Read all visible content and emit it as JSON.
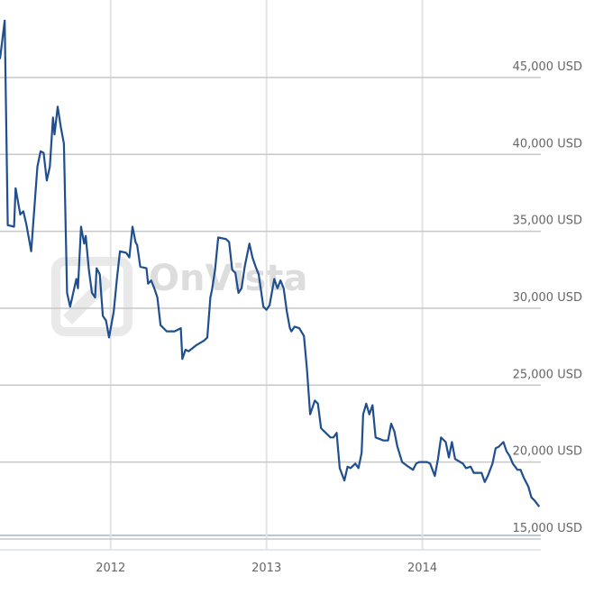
{
  "chart_data": {
    "type": "line",
    "watermark": "OnVista",
    "xlim": [
      2011.29,
      2014.76
    ],
    "xticks": [
      2012,
      2013,
      2014
    ],
    "ylim": [
      14300,
      49000
    ],
    "yticks": [
      {
        "value": 15000,
        "label": "15,000 USD"
      },
      {
        "value": 20000,
        "label": "20,000 USD"
      },
      {
        "value": 25000,
        "label": "25,000 USD"
      },
      {
        "value": 30000,
        "label": "30,000 USD"
      },
      {
        "value": 35000,
        "label": "35,000 USD"
      },
      {
        "value": 40000,
        "label": "40,000 USD"
      },
      {
        "value": 45000,
        "label": "45,000 USD"
      }
    ],
    "grid": true,
    "series": [
      {
        "color": "#1f4f8f",
        "x": [
          2011.29,
          2011.32,
          2011.34,
          2011.38,
          2011.39,
          2011.42,
          2011.44,
          2011.46,
          2011.49,
          2011.53,
          2011.55,
          2011.57,
          2011.59,
          2011.61,
          2011.63,
          2011.64,
          2011.66,
          2011.68,
          2011.7,
          2011.72,
          2011.74,
          2011.78,
          2011.79,
          2011.81,
          2011.83,
          2011.84,
          2011.86,
          2011.88,
          2011.9,
          2011.91,
          2011.93,
          2011.95,
          2011.97,
          2011.99,
          2012.02,
          2012.04,
          2012.06,
          2012.1,
          2012.12,
          2012.14,
          2012.16,
          2012.17,
          2012.19,
          2012.23,
          2012.24,
          2012.26,
          2012.28,
          2012.3,
          2012.32,
          2012.36,
          2012.41,
          2012.45,
          2012.46,
          2012.48,
          2012.5,
          2012.55,
          2012.6,
          2012.62,
          2012.64,
          2012.65,
          2012.67,
          2012.69,
          2012.74,
          2012.76,
          2012.78,
          2012.8,
          2012.82,
          2012.84,
          2012.86,
          2012.89,
          2012.91,
          2012.93,
          2012.95,
          2012.98,
          2013.0,
          2013.02,
          2013.05,
          2013.07,
          2013.09,
          2013.11,
          2013.13,
          2013.15,
          2013.16,
          2013.18,
          2013.21,
          2013.24,
          2013.26,
          2013.28,
          2013.31,
          2013.33,
          2013.35,
          2013.41,
          2013.43,
          2013.45,
          2013.47,
          2013.5,
          2013.52,
          2013.54,
          2013.57,
          2013.59,
          2013.61,
          2013.62,
          2013.64,
          2013.66,
          2013.68,
          2013.7,
          2013.75,
          2013.78,
          2013.8,
          2013.82,
          2013.84,
          2013.87,
          2013.91,
          2013.94,
          2013.96,
          2013.98,
          2014.03,
          2014.05,
          2014.08,
          2014.1,
          2014.12,
          2014.15,
          2014.17,
          2014.19,
          2014.21,
          2014.26,
          2014.28,
          2014.31,
          2014.33,
          2014.38,
          2014.4,
          2014.42,
          2014.45,
          2014.47,
          2014.49,
          2014.52,
          2014.54,
          2014.56,
          2014.58,
          2014.61,
          2014.63,
          2014.65,
          2014.68,
          2014.7,
          2014.72,
          2014.75
        ],
        "values": [
          46200,
          48700,
          35400,
          35300,
          37800,
          36100,
          36300,
          35400,
          33700,
          39200,
          40200,
          40100,
          38300,
          39200,
          42400,
          41300,
          43100,
          41800,
          40700,
          31000,
          30100,
          31900,
          31300,
          35300,
          34200,
          34700,
          32500,
          31000,
          30700,
          32600,
          32200,
          29500,
          29200,
          28100,
          29800,
          31900,
          33700,
          33600,
          33300,
          35300,
          34300,
          34100,
          32700,
          32600,
          31600,
          31800,
          31300,
          30700,
          28900,
          28500,
          28500,
          28700,
          26700,
          27300,
          27200,
          27600,
          27900,
          28100,
          30700,
          31200,
          32500,
          34600,
          34500,
          34300,
          32500,
          32300,
          31000,
          31300,
          32700,
          34200,
          33300,
          32700,
          32200,
          30100,
          29900,
          30200,
          31900,
          31300,
          31800,
          31300,
          29800,
          28700,
          28500,
          28800,
          28700,
          28200,
          26000,
          23100,
          24000,
          23800,
          22200,
          21600,
          21600,
          21900,
          19600,
          18800,
          19700,
          19600,
          19900,
          19600,
          20600,
          23100,
          23800,
          23100,
          23700,
          21600,
          21400,
          21400,
          22500,
          22000,
          21000,
          20000,
          19700,
          19500,
          19900,
          20000,
          20000,
          19900,
          19100,
          20200,
          21600,
          21300,
          20300,
          21300,
          20200,
          19900,
          19600,
          19700,
          19300,
          19300,
          18700,
          19100,
          19900,
          20900,
          21000,
          21300,
          20700,
          20400,
          19900,
          19500,
          19500,
          19000,
          18400,
          17700,
          17500,
          17100
        ]
      }
    ]
  }
}
